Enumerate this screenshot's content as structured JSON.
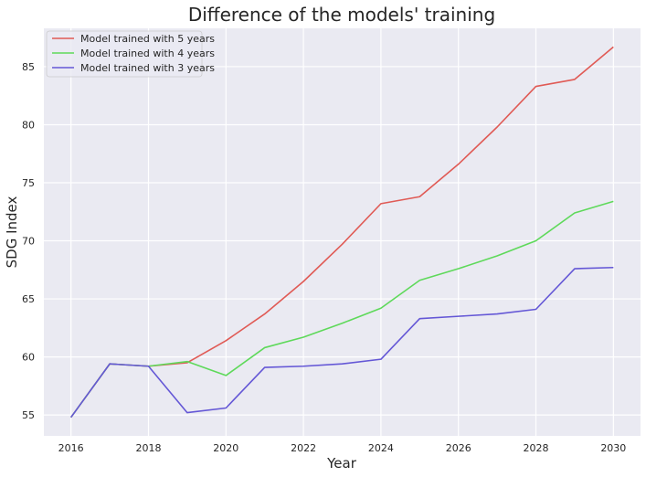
{
  "chart_data": {
    "type": "line",
    "title": "Difference of the models' training",
    "xlabel": "Year",
    "ylabel": "SDG Index",
    "x": [
      2016,
      2017,
      2018,
      2019,
      2020,
      2021,
      2022,
      2023,
      2024,
      2025,
      2026,
      2027,
      2028,
      2029,
      2030
    ],
    "xlim": [
      2015.3,
      2030.7
    ],
    "ylim": [
      53.2,
      88.3
    ],
    "x_ticks": [
      "2016",
      "2018",
      "2020",
      "2022",
      "2024",
      "2026",
      "2028",
      "2030"
    ],
    "y_ticks": [
      "55",
      "60",
      "65",
      "70",
      "75",
      "80",
      "85"
    ],
    "grid": true,
    "legend_position": "top-left",
    "series": [
      {
        "name": "Model trained with 5 years",
        "color": "#e05a55",
        "values": [
          54.8,
          59.4,
          59.2,
          59.5,
          61.4,
          63.7,
          66.5,
          69.7,
          73.2,
          73.8,
          76.6,
          79.8,
          83.3,
          83.9,
          86.7
        ]
      },
      {
        "name": "Model trained with 4 years",
        "color": "#5ed95a",
        "values": [
          54.8,
          59.4,
          59.2,
          59.6,
          58.4,
          60.8,
          61.7,
          62.9,
          64.2,
          66.6,
          67.6,
          68.7,
          70.0,
          72.4,
          73.4
        ]
      },
      {
        "name": "Model trained with 3 years",
        "color": "#6457d6",
        "values": [
          54.8,
          59.4,
          59.2,
          55.2,
          55.6,
          59.1,
          59.2,
          59.4,
          59.8,
          63.3,
          63.5,
          63.7,
          64.1,
          67.6,
          67.7
        ]
      }
    ]
  }
}
